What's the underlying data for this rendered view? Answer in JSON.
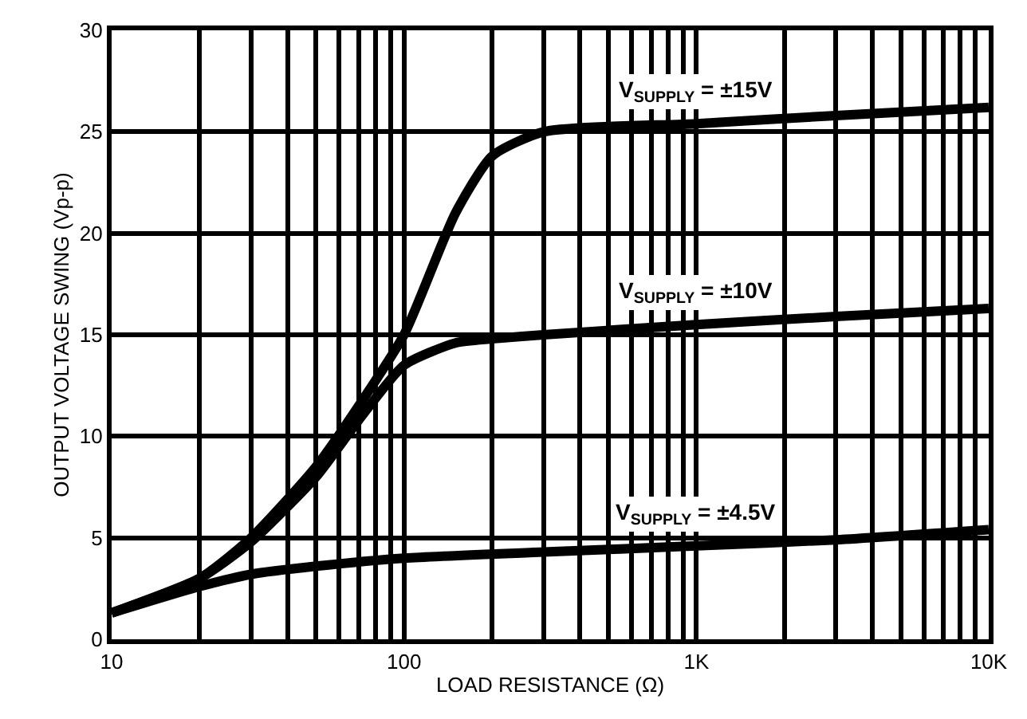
{
  "chart_data": {
    "type": "line",
    "xlabel": "LOAD RESISTANCE (Ω)",
    "ylabel": "OUTPUT VOLTAGE SWING (Vp-p)",
    "log": "x",
    "grid": true,
    "legend": false,
    "marker": "none",
    "line_style": "solid",
    "xlim": [
      10,
      10000
    ],
    "ylim": [
      0,
      30
    ],
    "xticks": [
      10,
      {
        "value": 20,
        "label": null
      },
      {
        "value": 30,
        "label": null
      },
      {
        "value": 40,
        "label": null
      },
      {
        "value": 50,
        "label": null
      },
      {
        "value": 60,
        "label": null
      },
      {
        "value": 70,
        "label": null
      },
      {
        "value": 80,
        "label": null
      },
      {
        "value": 90,
        "label": null
      },
      100,
      {
        "value": 200,
        "label": null
      },
      {
        "value": 300,
        "label": null
      },
      {
        "value": 400,
        "label": null
      },
      {
        "value": 500,
        "label": null
      },
      {
        "value": 600,
        "label": null
      },
      {
        "value": 700,
        "label": null
      },
      {
        "value": 800,
        "label": null
      },
      {
        "value": 900,
        "label": null
      },
      {
        "value": 1000,
        "label": "1K"
      },
      {
        "value": 2000,
        "label": null
      },
      {
        "value": 3000,
        "label": null
      },
      {
        "value": 4000,
        "label": null
      },
      {
        "value": 5000,
        "label": null
      },
      {
        "value": 6000,
        "label": null
      },
      {
        "value": 7000,
        "label": null
      },
      {
        "value": 8000,
        "label": null
      },
      {
        "value": 9000,
        "label": null
      },
      {
        "value": 10000,
        "label": "10K"
      }
    ],
    "yticks": [
      0,
      5,
      10,
      15,
      20,
      25,
      30
    ],
    "series": [
      {
        "name": "V$_{SUPPLY}$ = ±15V",
        "color": "#000000",
        "x": [
          10,
          20,
          30,
          50,
          70,
          100,
          150,
          200,
          300,
          1000,
          3000,
          10000
        ],
        "values": [
          1.3,
          3.0,
          5.0,
          8.5,
          11.5,
          15.0,
          21.0,
          23.8,
          25.0,
          25.4,
          25.8,
          26.2
        ]
      },
      {
        "name": "V$_{SUPPLY}$ = ±10V",
        "color": "#000000",
        "x": [
          10,
          20,
          30,
          50,
          70,
          100,
          150,
          200,
          300,
          1000,
          3000,
          10000
        ],
        "values": [
          1.3,
          3.0,
          4.8,
          8.0,
          10.8,
          13.5,
          14.6,
          14.8,
          15.0,
          15.5,
          15.9,
          16.3
        ]
      },
      {
        "name": "V$_{SUPPLY}$ = ±4.5V",
        "color": "#000000",
        "x": [
          10,
          20,
          30,
          50,
          100,
          300,
          1000,
          3000,
          10000
        ],
        "values": [
          1.3,
          2.6,
          3.2,
          3.6,
          4.0,
          4.3,
          4.6,
          4.9,
          5.4
        ]
      }
    ]
  }
}
